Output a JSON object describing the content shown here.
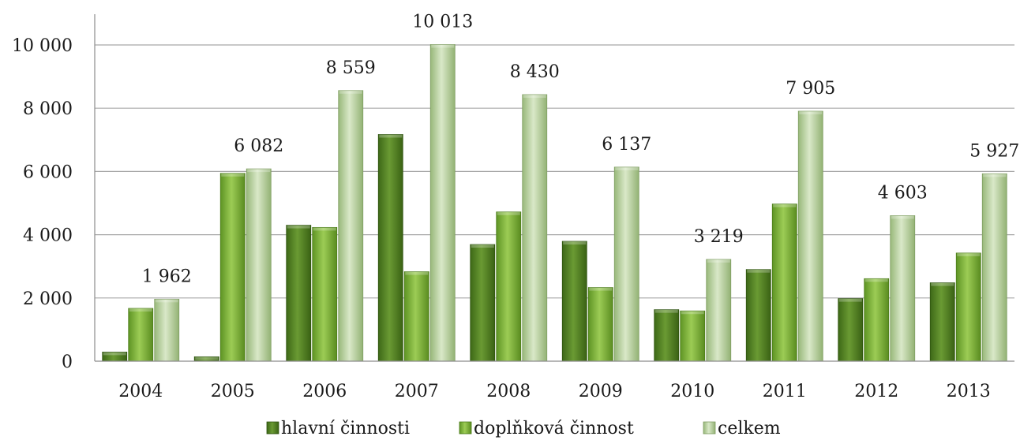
{
  "chart_data": {
    "type": "bar",
    "categories": [
      "2004",
      "2005",
      "2006",
      "2007",
      "2008",
      "2009",
      "2010",
      "2011",
      "2012",
      "2013"
    ],
    "series": [
      {
        "name": "hlavní činnosti",
        "values": [
          290,
          140,
          4300,
          7170,
          3690,
          3790,
          1630,
          2900,
          1980,
          2480
        ]
      },
      {
        "name": "doplňková činnost",
        "values": [
          1670,
          5940,
          4230,
          2830,
          4720,
          2330,
          1590,
          4970,
          2610,
          3420
        ]
      },
      {
        "name": "celkem",
        "values": [
          1962,
          6082,
          8559,
          10013,
          8430,
          6137,
          3219,
          7905,
          4603,
          5927
        ]
      }
    ],
    "data_labels": [
      "1 962",
      "6 082",
      "8 559",
      "10 013",
      "8 430",
      "6 137",
      "3 219",
      "7 905",
      "4 603",
      "5 927"
    ],
    "y_ticks": [
      {
        "value": 0,
        "label": "0"
      },
      {
        "value": 2000,
        "label": "2 000"
      },
      {
        "value": 4000,
        "label": "4 000"
      },
      {
        "value": 6000,
        "label": "6 000"
      },
      {
        "value": 8000,
        "label": "8 000"
      },
      {
        "value": 10000,
        "label": "10 000"
      }
    ],
    "ylim": [
      0,
      10000
    ],
    "grid": true,
    "legend_position": "bottom",
    "colors": [
      "#4d7a1f",
      "#7ab535",
      "#b5cf9a"
    ]
  }
}
